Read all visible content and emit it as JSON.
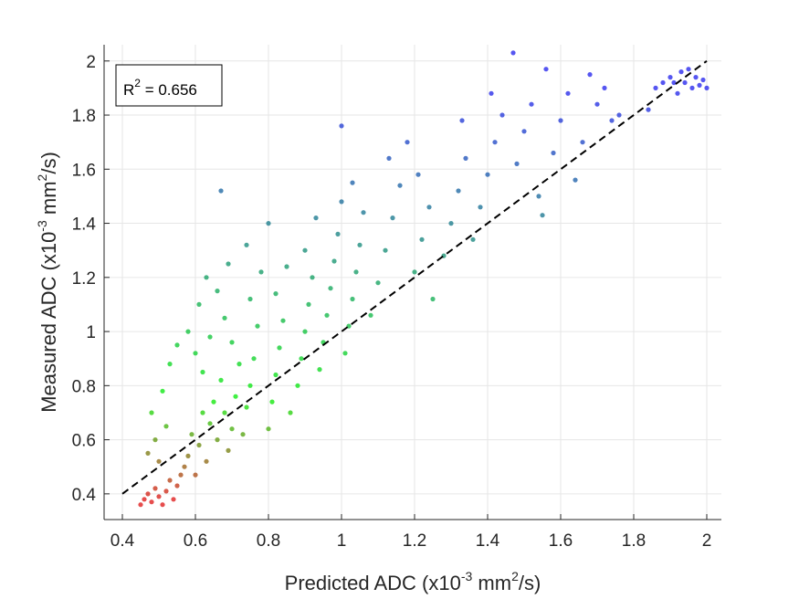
{
  "chart_data": {
    "type": "scatter",
    "xlabel": {
      "base": "Predicted ADC (x10",
      "exp": "-3",
      "mid": " mm",
      "exp2": "2",
      "end": "/s)"
    },
    "ylabel": {
      "base": "Measured ADC (x10",
      "exp": "-3",
      "mid": " mm",
      "exp2": "2",
      "end": "/s)"
    },
    "xlim": [
      0.35,
      2.04
    ],
    "ylim": [
      0.305,
      2.06
    ],
    "xticks": [
      0.4,
      0.6,
      0.8,
      1,
      1.2,
      1.4,
      1.6,
      1.8,
      2
    ],
    "xtick_labels": [
      "0.4",
      "0.6",
      "0.8",
      "1",
      "1.2",
      "1.4",
      "1.6",
      "1.8",
      "2"
    ],
    "yticks": [
      0.4,
      0.6,
      0.8,
      1,
      1.2,
      1.4,
      1.6,
      1.8,
      2
    ],
    "ytick_labels": [
      "0.4",
      "0.6",
      "0.8",
      "1",
      "1.2",
      "1.4",
      "1.6",
      "1.8",
      "2"
    ],
    "grid": true,
    "annotation": {
      "r2_prefix": "R",
      "r2_exp": "2",
      "r2_value": " = 0.656"
    },
    "reference_line": {
      "x": [
        0.4,
        2.0
      ],
      "y": [
        0.4,
        2.0
      ],
      "style": "dashed",
      "color": "#000000"
    },
    "colors": {
      "low": "#e02020",
      "mid": "#12ee12",
      "high": "#2c2cee"
    },
    "series": [
      {
        "color_by": "measured value",
        "points": [
          [
            0.45,
            0.36
          ],
          [
            0.46,
            0.38
          ],
          [
            0.47,
            0.4
          ],
          [
            0.48,
            0.37
          ],
          [
            0.49,
            0.42
          ],
          [
            0.5,
            0.39
          ],
          [
            0.51,
            0.36
          ],
          [
            0.52,
            0.41
          ],
          [
            0.53,
            0.45
          ],
          [
            0.54,
            0.38
          ],
          [
            0.55,
            0.43
          ],
          [
            0.56,
            0.47
          ],
          [
            0.47,
            0.55
          ],
          [
            0.49,
            0.6
          ],
          [
            0.5,
            0.52
          ],
          [
            0.52,
            0.65
          ],
          [
            0.48,
            0.7
          ],
          [
            0.51,
            0.78
          ],
          [
            0.53,
            0.88
          ],
          [
            0.55,
            0.95
          ],
          [
            0.57,
            0.5
          ],
          [
            0.58,
            0.54
          ],
          [
            0.6,
            0.47
          ],
          [
            0.59,
            0.62
          ],
          [
            0.61,
            0.58
          ],
          [
            0.62,
            0.7
          ],
          [
            0.63,
            0.52
          ],
          [
            0.64,
            0.66
          ],
          [
            0.65,
            0.74
          ],
          [
            0.66,
            0.6
          ],
          [
            0.62,
            0.85
          ],
          [
            0.6,
            0.92
          ],
          [
            0.58,
            1.0
          ],
          [
            0.61,
            1.1
          ],
          [
            0.63,
            1.2
          ],
          [
            0.64,
            0.98
          ],
          [
            0.67,
            0.82
          ],
          [
            0.68,
            0.7
          ],
          [
            0.69,
            0.56
          ],
          [
            0.7,
            0.64
          ],
          [
            0.71,
            0.76
          ],
          [
            0.72,
            0.88
          ],
          [
            0.7,
            0.96
          ],
          [
            0.68,
            1.05
          ],
          [
            0.66,
            1.15
          ],
          [
            0.69,
            1.25
          ],
          [
            0.67,
            1.52
          ],
          [
            0.73,
            0.62
          ],
          [
            0.74,
            0.72
          ],
          [
            0.75,
            0.8
          ],
          [
            0.76,
            0.9
          ],
          [
            0.77,
            1.02
          ],
          [
            0.75,
            1.12
          ],
          [
            0.78,
            1.22
          ],
          [
            0.74,
            1.32
          ],
          [
            0.8,
            0.64
          ],
          [
            0.81,
            0.74
          ],
          [
            0.82,
            0.84
          ],
          [
            0.83,
            0.94
          ],
          [
            0.84,
            1.04
          ],
          [
            0.82,
            1.14
          ],
          [
            0.85,
            1.24
          ],
          [
            0.8,
            1.4
          ],
          [
            0.86,
            0.7
          ],
          [
            0.88,
            0.8
          ],
          [
            0.89,
            0.9
          ],
          [
            0.9,
            1.0
          ],
          [
            0.91,
            1.1
          ],
          [
            0.92,
            1.2
          ],
          [
            0.9,
            1.3
          ],
          [
            0.93,
            1.42
          ],
          [
            0.94,
            0.86
          ],
          [
            0.95,
            0.96
          ],
          [
            0.96,
            1.06
          ],
          [
            0.97,
            1.16
          ],
          [
            0.98,
            1.26
          ],
          [
            0.99,
            1.36
          ],
          [
            1.0,
            1.48
          ],
          [
            1.01,
            0.92
          ],
          [
            1.02,
            1.02
          ],
          [
            1.03,
            1.12
          ],
          [
            1.04,
            1.22
          ],
          [
            1.05,
            1.32
          ],
          [
            1.06,
            1.44
          ],
          [
            1.03,
            1.55
          ],
          [
            1.0,
            1.76
          ],
          [
            1.08,
            1.06
          ],
          [
            1.1,
            1.18
          ],
          [
            1.12,
            1.3
          ],
          [
            1.14,
            1.42
          ],
          [
            1.16,
            1.54
          ],
          [
            1.13,
            1.64
          ],
          [
            1.18,
            1.7
          ],
          [
            1.2,
            1.22
          ],
          [
            1.22,
            1.34
          ],
          [
            1.24,
            1.46
          ],
          [
            1.21,
            1.58
          ],
          [
            1.25,
            1.12
          ],
          [
            1.28,
            1.28
          ],
          [
            1.3,
            1.4
          ],
          [
            1.32,
            1.52
          ],
          [
            1.34,
            1.64
          ],
          [
            1.33,
            1.78
          ],
          [
            1.36,
            1.34
          ],
          [
            1.38,
            1.46
          ],
          [
            1.4,
            1.58
          ],
          [
            1.42,
            1.7
          ],
          [
            1.44,
            1.8
          ],
          [
            1.41,
            1.88
          ],
          [
            1.47,
            2.03
          ],
          [
            1.48,
            1.62
          ],
          [
            1.5,
            1.74
          ],
          [
            1.52,
            1.84
          ],
          [
            1.54,
            1.5
          ],
          [
            1.55,
            1.43
          ],
          [
            1.56,
            1.97
          ],
          [
            1.58,
            1.66
          ],
          [
            1.6,
            1.78
          ],
          [
            1.62,
            1.88
          ],
          [
            1.64,
            1.56
          ],
          [
            1.66,
            1.7
          ],
          [
            1.68,
            1.95
          ],
          [
            1.7,
            1.84
          ],
          [
            1.72,
            1.9
          ],
          [
            1.74,
            1.78
          ],
          [
            1.76,
            1.8
          ],
          [
            1.84,
            1.82
          ],
          [
            1.86,
            1.9
          ],
          [
            1.88,
            1.92
          ],
          [
            1.9,
            1.94
          ],
          [
            1.92,
            1.88
          ],
          [
            1.93,
            1.96
          ],
          [
            1.94,
            1.92
          ],
          [
            1.95,
            1.97
          ],
          [
            1.96,
            1.9
          ],
          [
            1.97,
            1.94
          ],
          [
            1.98,
            1.91
          ],
          [
            1.99,
            1.93
          ],
          [
            2.0,
            1.9
          ],
          [
            1.91,
            1.92
          ]
        ]
      }
    ]
  }
}
